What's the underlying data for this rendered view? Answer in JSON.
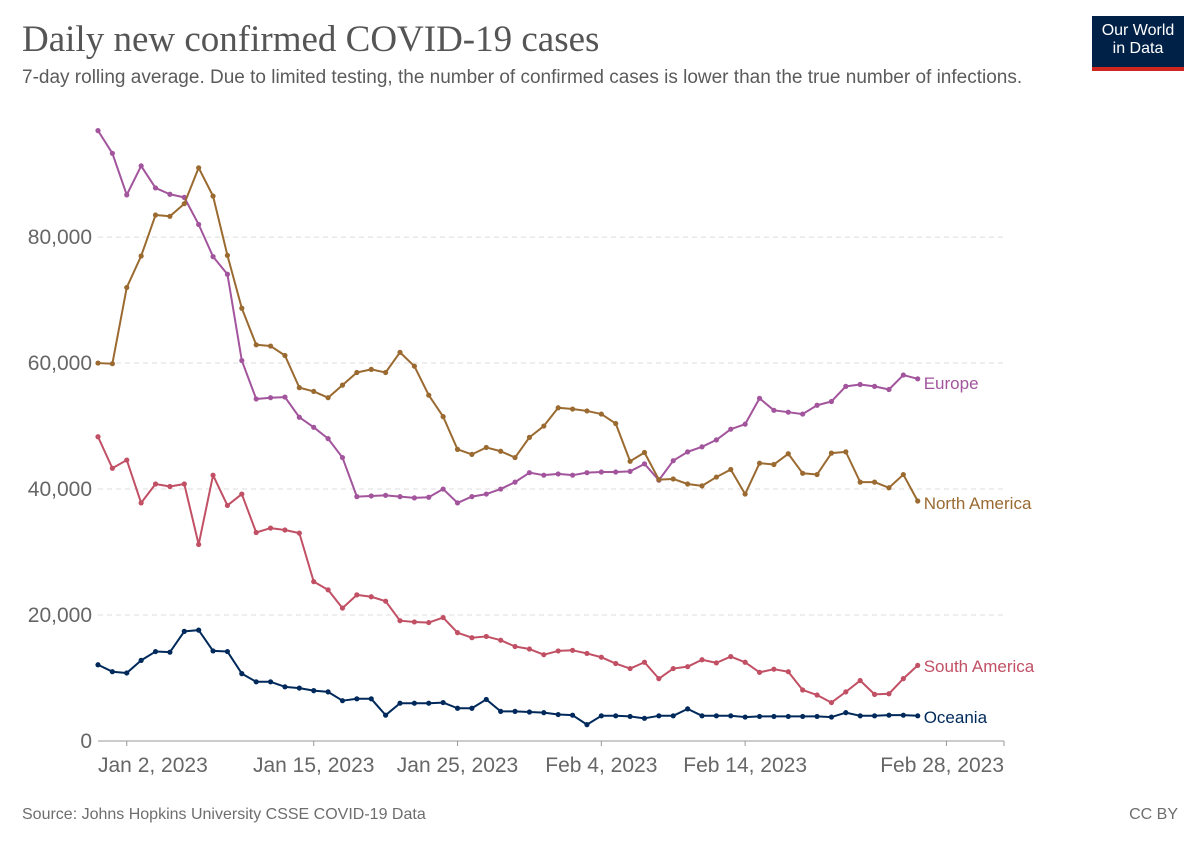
{
  "header": {
    "title": "Daily new confirmed COVID-19 cases",
    "subtitle": "7-day rolling average. Due to limited testing, the number of confirmed cases is lower than the true number of infections."
  },
  "logo": {
    "line1": "Our World",
    "line2": "in Data",
    "background": "#002147",
    "accent": "#ce261e"
  },
  "footer": {
    "source": "Source: Johns Hopkins University CSSE COVID-19 Data",
    "license": "CC BY"
  },
  "chart_data": {
    "type": "line",
    "x_start": "2022-12-31",
    "x_end": "2023-03-04",
    "x_ticks": [
      {
        "date": "2023-01-02",
        "label": "Jan 2, 2023"
      },
      {
        "date": "2023-01-15",
        "label": "Jan 15, 2023"
      },
      {
        "date": "2023-01-25",
        "label": "Jan 25, 2023"
      },
      {
        "date": "2023-02-04",
        "label": "Feb 4, 2023"
      },
      {
        "date": "2023-02-14",
        "label": "Feb 14, 2023"
      },
      {
        "date": "2023-02-28",
        "label": "Feb 28, 2023"
      }
    ],
    "y_ticks": [
      {
        "value": 0,
        "label": "0"
      },
      {
        "value": 20000,
        "label": "20,000"
      },
      {
        "value": 40000,
        "label": "40,000"
      },
      {
        "value": 60000,
        "label": "60,000"
      },
      {
        "value": 80000,
        "label": "80,000"
      }
    ],
    "ylim": [
      0,
      97000
    ],
    "grid": "horizontal-dashed",
    "legend": "right, inline at line ends",
    "series": [
      {
        "name": "Europe",
        "color": "#a2559c",
        "values": [
          96900,
          93300,
          86700,
          91300,
          87800,
          86800,
          86300,
          82000,
          76900,
          74100,
          60400,
          54300,
          54500,
          54600,
          51400,
          49800,
          48000,
          45000,
          38800,
          38900,
          39000,
          38800,
          38600,
          38700,
          40000,
          37800,
          38800,
          39200,
          40000,
          41100,
          42600,
          42200,
          42400,
          42200,
          42600,
          42700,
          42700,
          42800,
          44000,
          41400,
          44500,
          45900,
          46700,
          47800,
          49500,
          50300,
          54400,
          52500,
          52200,
          51900,
          53300,
          53900,
          56300,
          56600,
          56300,
          55800,
          58100,
          57500
        ]
      },
      {
        "name": "North America",
        "color": "#9a6a31",
        "values": [
          60000,
          59900,
          72000,
          77000,
          83500,
          83300,
          85300,
          91000,
          86500,
          77100,
          68700,
          62900,
          62700,
          61200,
          56100,
          55500,
          54500,
          56500,
          58500,
          59000,
          58500,
          61700,
          59500,
          54900,
          51500,
          46300,
          45500,
          46600,
          46000,
          45000,
          48200,
          50000,
          52900,
          52700,
          52400,
          51900,
          50400,
          44400,
          45800,
          41500,
          41600,
          40800,
          40500,
          41900,
          43100,
          39200,
          44100,
          43900,
          45600,
          42500,
          42300,
          45700,
          45900,
          41100,
          41100,
          40200,
          42300,
          38100
        ]
      },
      {
        "name": "South America",
        "color": "#c15065",
        "values": [
          48300,
          43300,
          44600,
          37800,
          40800,
          40400,
          40800,
          31200,
          42200,
          37400,
          39200,
          33100,
          33800,
          33500,
          33000,
          25300,
          24000,
          21100,
          23200,
          22900,
          22200,
          19100,
          18900,
          18800,
          19600,
          17200,
          16400,
          16600,
          16000,
          15000,
          14600,
          13700,
          14300,
          14400,
          13900,
          13300,
          12300,
          11500,
          12500,
          9900,
          11500,
          11800,
          12900,
          12400,
          13400,
          12500,
          10900,
          11400,
          11000,
          8100,
          7300,
          6100,
          7800,
          9600,
          7400,
          7500,
          9900,
          12000
        ]
      },
      {
        "name": "Oceania",
        "color": "#00295b",
        "values": [
          12100,
          11000,
          10800,
          12800,
          14200,
          14100,
          17400,
          17600,
          14300,
          14200,
          10700,
          9400,
          9400,
          8600,
          8400,
          8000,
          7800,
          6400,
          6700,
          6700,
          4100,
          6000,
          6000,
          6000,
          6100,
          5200,
          5200,
          6600,
          4700,
          4700,
          4600,
          4500,
          4200,
          4100,
          2600,
          4000,
          4000,
          3900,
          3600,
          4000,
          4000,
          5100,
          4000,
          4000,
          4000,
          3800,
          3900,
          3900,
          3900,
          3900,
          3900,
          3800,
          4500,
          4000,
          4000,
          4100,
          4100,
          4000
        ]
      }
    ]
  }
}
